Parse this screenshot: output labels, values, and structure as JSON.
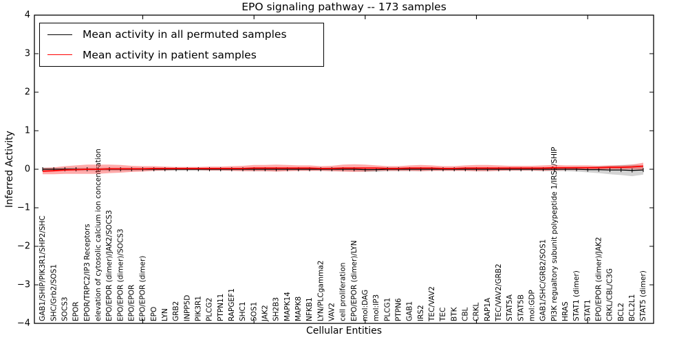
{
  "title": "EPO signaling pathway -- 173 samples",
  "axes": {
    "xlabel": "Cellular Entities",
    "ylabel": "Inferred Activity",
    "y_ticks": [
      "4",
      "3",
      "2",
      "1",
      "0",
      "−1",
      "−2",
      "−3",
      "−4"
    ],
    "ylim": [
      -4,
      4
    ]
  },
  "chart_data": {
    "type": "line",
    "title": "EPO signaling pathway -- 173 samples",
    "xlabel": "Cellular Entities",
    "ylabel": "Inferred Activity",
    "ylim": [
      -4,
      4
    ],
    "grid": false,
    "legend_position": "upper left",
    "categories": [
      "GAB1/SHIP/PIK3R1/SHP2/SHC",
      "SHC/Grb2/SOS1",
      "SOCS3",
      "EPOR",
      "EPOR/TRPC2/IP3 Receptors",
      "elevation of cytosolic calcium ion concentration",
      "EPO/EPOR (dimer)/JAK2/SOCS3",
      "EPO/EPOR (dimer)/SOCS3",
      "EPO/EPOR",
      "EPO/EPOR (dimer)",
      "EPO",
      "LYN",
      "GRB2",
      "INPP5D",
      "PIK3R1",
      "PLCG2",
      "PTPN11",
      "RAPGEF1",
      "SHC1",
      "SOS1",
      "JAK2",
      "SH2B3",
      "MAPK14",
      "MAPK8",
      "NFKB1",
      "LYN/PLCgamma2",
      "VAV2",
      "cell proliferation",
      "EPO/EPOR (dimer)/LYN",
      "mol:DAG",
      "mol:IP3",
      "PLCG1",
      "PTPN6",
      "GAB1",
      "IRS2",
      "TEC/VAV2",
      "TEC",
      "BTK",
      "CBL",
      "CRKL",
      "RAP1A",
      "TEC/VAV2/GRB2",
      "STAT5A",
      "STAT5B",
      "mol:GDP",
      "GAB1/SHC/GRB2/SOS1",
      "PI3K regualtory subunit polypeptide 1/IRS2/SHIP",
      "HRAS",
      "STAT1 (dimer)",
      "STAT1",
      "EPO/EPOR (dimer)/JAK2",
      "CRKL/CBL/C3G",
      "BCL2",
      "BCL2L1",
      "STAT5 (dimer)"
    ],
    "series": [
      {
        "name": "Mean activity in all permuted samples",
        "color": "#000000",
        "marker": "|",
        "band_color": "rgba(128,128,128,0.35)",
        "values": [
          0,
          0,
          0,
          0,
          0,
          0,
          0,
          0,
          0,
          0,
          0,
          0,
          0,
          0,
          0,
          0,
          0,
          0,
          0,
          0,
          0,
          0,
          0,
          0,
          0,
          0,
          0,
          0,
          0,
          -0.01,
          -0.01,
          0,
          0,
          0,
          0,
          0,
          0,
          0,
          0,
          0,
          0,
          0,
          0,
          0,
          0,
          0,
          0,
          0,
          0,
          -0.01,
          -0.01,
          -0.02,
          -0.02,
          -0.03,
          -0.02
        ],
        "band_halfwidth": [
          0.05,
          0.04,
          0.04,
          0.04,
          0.04,
          0.04,
          0.04,
          0.04,
          0.04,
          0.04,
          0.04,
          0.04,
          0.04,
          0.04,
          0.04,
          0.04,
          0.04,
          0.04,
          0.04,
          0.05,
          0.05,
          0.05,
          0.04,
          0.04,
          0.04,
          0.04,
          0.05,
          0.05,
          0.05,
          0.06,
          0.06,
          0.05,
          0.05,
          0.05,
          0.05,
          0.04,
          0.04,
          0.04,
          0.04,
          0.05,
          0.05,
          0.04,
          0.04,
          0.04,
          0.04,
          0.05,
          0.05,
          0.05,
          0.06,
          0.07,
          0.09,
          0.11,
          0.13,
          0.15,
          0.12
        ]
      },
      {
        "name": "Mean activity in patient samples",
        "color": "#ff0000",
        "marker": "",
        "band_color": "rgba(255,0,0,0.33)",
        "values": [
          -0.05,
          -0.04,
          -0.02,
          -0.01,
          0,
          0,
          0.01,
          0.01,
          0.01,
          0.01,
          0.02,
          0.02,
          0.02,
          0.02,
          0.02,
          0.02,
          0.02,
          0.02,
          0.02,
          0.03,
          0.03,
          0.03,
          0.03,
          0.03,
          0.03,
          0.02,
          0.02,
          0.03,
          0.03,
          0.03,
          0.03,
          0.02,
          0.02,
          0.03,
          0.03,
          0.03,
          0.02,
          0.02,
          0.03,
          0.03,
          0.03,
          0.03,
          0.03,
          0.03,
          0.03,
          0.03,
          0.04,
          0.04,
          0.04,
          0.04,
          0.04,
          0.05,
          0.05,
          0.06,
          0.08
        ],
        "band_halfwidth": [
          0.08,
          0.09,
          0.1,
          0.11,
          0.12,
          0.12,
          0.11,
          0.1,
          0.08,
          0.07,
          0.06,
          0.05,
          0.04,
          0.04,
          0.04,
          0.05,
          0.05,
          0.06,
          0.07,
          0.08,
          0.08,
          0.09,
          0.08,
          0.07,
          0.07,
          0.06,
          0.07,
          0.09,
          0.1,
          0.09,
          0.07,
          0.06,
          0.06,
          0.07,
          0.08,
          0.07,
          0.06,
          0.06,
          0.07,
          0.08,
          0.08,
          0.07,
          0.06,
          0.06,
          0.06,
          0.07,
          0.07,
          0.06,
          0.06,
          0.06,
          0.05,
          0.05,
          0.05,
          0.06,
          0.09
        ]
      }
    ]
  }
}
